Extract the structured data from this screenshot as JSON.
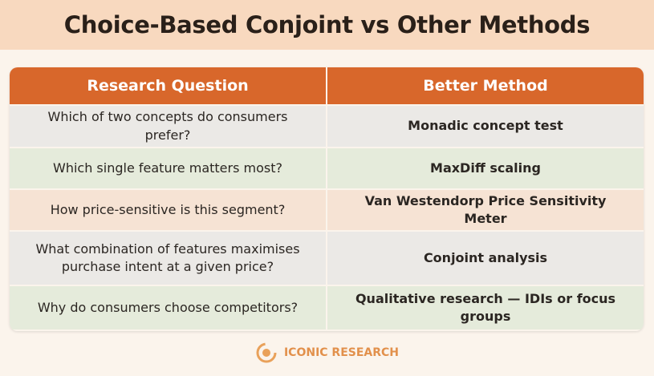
{
  "header": {
    "title": "Choice-Based Conjoint vs Other Methods"
  },
  "table": {
    "columns": [
      "Research Question",
      "Better Method"
    ],
    "rows": [
      [
        "Which of two concepts do consumers prefer?",
        "Monadic concept test"
      ],
      [
        "Which single feature matters most?",
        "MaxDiff scaling"
      ],
      [
        "How price-sensitive is this segment?",
        "Van Westendorp Price Sensitivity Meter"
      ],
      [
        "What combination of features maximises purchase intent at a given price?",
        "Conjoint analysis"
      ],
      [
        "Why do consumers choose competitors?",
        "Qualitative research — IDIs or focus groups"
      ]
    ]
  },
  "footer": {
    "brand": "ICONIC RESEARCH"
  }
}
